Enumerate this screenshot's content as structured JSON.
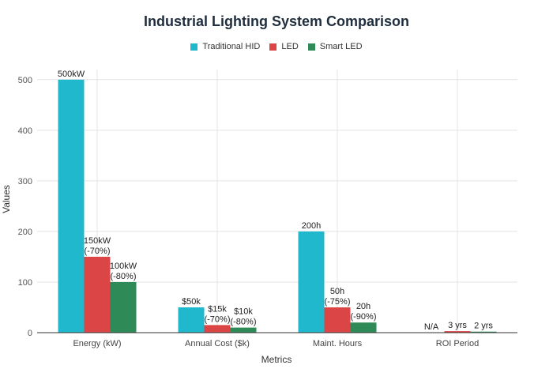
{
  "chart_data": {
    "type": "bar",
    "title": "Industrial Lighting System Comparison",
    "xlabel": "Metrics",
    "ylabel": "Values",
    "ylim": [
      0,
      520
    ],
    "yticks": [
      0,
      100,
      200,
      300,
      400,
      500
    ],
    "grid": true,
    "legend_position": "top",
    "categories": [
      "Energy (kW)",
      "Annual Cost ($k)",
      "Maint. Hours",
      "ROI Period"
    ],
    "series": [
      {
        "name": "Traditional HID",
        "color": "#1fb8cd",
        "values": [
          500,
          50,
          200,
          0
        ],
        "labels": [
          "500kW",
          "$50k",
          "200h",
          "N/A"
        ]
      },
      {
        "name": "LED",
        "color": "#db4545",
        "values": [
          150,
          15,
          50,
          3
        ],
        "labels": [
          "150kW\n(-70%)",
          "$15k\n(-70%)",
          "50h\n(-75%)",
          "3 yrs"
        ]
      },
      {
        "name": "Smart LED",
        "color": "#2e8b57",
        "values": [
          100,
          10,
          20,
          2
        ],
        "labels": [
          "100kW\n(-80%)",
          "$10k\n(-80%)",
          "20h\n(-90%)",
          "2 yrs"
        ]
      }
    ]
  }
}
